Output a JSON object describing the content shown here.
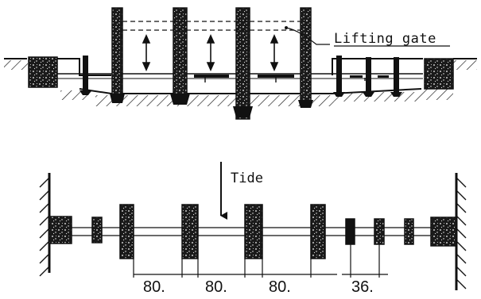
{
  "elevation": {
    "lifting_gate_label": "Lifting gate"
  },
  "plan": {
    "tide_label": "Tide",
    "dimensions": [
      "80.",
      "80.",
      "80.",
      "36."
    ]
  }
}
